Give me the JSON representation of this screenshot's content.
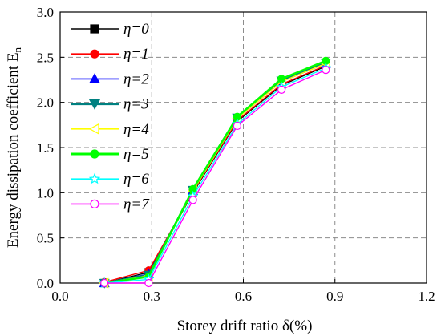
{
  "chart_data": {
    "type": "line",
    "xlabel": "Storey drift ratio δ(%)",
    "ylabel": "Energy dissipation coefficient E",
    "ylabel_sub": "n",
    "xlim": [
      0.0,
      1.2
    ],
    "ylim": [
      0.0,
      3.0
    ],
    "xticks": [
      "0.0",
      "0.3",
      "0.6",
      "0.9",
      "1.2"
    ],
    "yticks": [
      "0.0",
      "0.5",
      "1.0",
      "1.5",
      "2.0",
      "2.5",
      "3.0"
    ],
    "grid": true,
    "legend_position": "top-left",
    "x": [
      0.145,
      0.29,
      0.435,
      0.58,
      0.725,
      0.87
    ],
    "series": [
      {
        "name": "η=0",
        "color": "#000000",
        "marker": "square-filled",
        "values": [
          0.0,
          0.12,
          1.0,
          1.79,
          2.19,
          2.4
        ]
      },
      {
        "name": "η=1",
        "color": "#ff0000",
        "marker": "circle-filled",
        "values": [
          0.01,
          0.14,
          1.01,
          1.8,
          2.2,
          2.41
        ]
      },
      {
        "name": "η=2",
        "color": "#0000ff",
        "marker": "triangle-up-filled",
        "values": [
          0.0,
          0.1,
          1.02,
          1.82,
          2.23,
          2.43
        ]
      },
      {
        "name": "η=3",
        "color": "#008080",
        "marker": "triangle-down-filled",
        "values": [
          0.0,
          0.09,
          1.03,
          1.83,
          2.24,
          2.44
        ]
      },
      {
        "name": "η=4",
        "color": "#ffff00",
        "marker": "triangle-left-open",
        "values": [
          0.0,
          0.08,
          1.02,
          1.82,
          2.23,
          2.43
        ]
      },
      {
        "name": "η=5",
        "color": "#00ff00",
        "marker": "circle-filled",
        "values": [
          0.0,
          0.07,
          1.04,
          1.84,
          2.26,
          2.46
        ]
      },
      {
        "name": "η=6",
        "color": "#00ffff",
        "marker": "star-open",
        "values": [
          0.0,
          0.04,
          0.96,
          1.76,
          2.17,
          2.38
        ]
      },
      {
        "name": "η=7",
        "color": "#ff00ff",
        "marker": "circle-open",
        "values": [
          0.0,
          0.0,
          0.92,
          1.74,
          2.14,
          2.36
        ]
      }
    ]
  }
}
